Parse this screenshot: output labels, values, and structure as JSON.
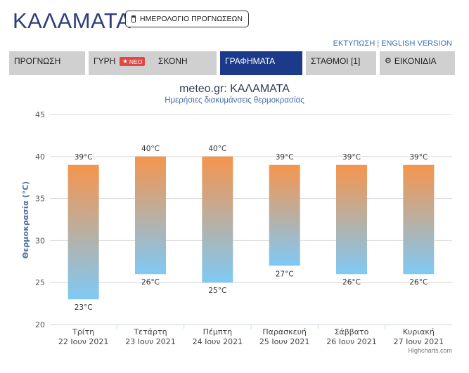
{
  "header": {
    "city": "ΚΑΛΑΜΑΤΑ",
    "calendar_button": "ΗΜΕΡΟΛΟΓΙΟ ΠΡΟΓΝΩΣΕΩΝ",
    "print_link": "ΕΚΤΥΠΩΣΗ",
    "separator": "|",
    "english_link": "ENGLISH VERSION"
  },
  "tabs": [
    {
      "label": "ΠΡΟΓΝΩΣΗ",
      "active": false
    },
    {
      "label": "ΓΥΡΗ",
      "badge": "ΝΕΟ",
      "active": false
    },
    {
      "label": "ΣΚΟΝΗ",
      "active": false
    },
    {
      "label": "ΓΡΑΦΗΜΑΤΑ",
      "active": true
    },
    {
      "label": "ΣΤΑΘΜΟΙ [1]",
      "active": false
    },
    {
      "label": "ΕΙΚΟΝΙΔΙΑ",
      "active": false
    }
  ],
  "icons": {
    "calendar": "calendar-icon",
    "star": "star-icon",
    "gear": "gear-icon"
  },
  "colors": {
    "title": "#2f3e7a",
    "active_tab": "#1b3a8a",
    "tab": "#d0d0d0",
    "badge": "#e04848",
    "bar_top": "#f5954d",
    "bar_bottom": "#7fc9f5"
  },
  "chart_data": {
    "type": "bar",
    "subtype": "columnrange",
    "title": "meteo.gr: ΚΑΛΑΜΑΤΑ",
    "subtitle": "Ημερήσιες διακυμάνσεις θερμοκρασίας",
    "ylabel": "Θερμοκρασία (°C)",
    "ylim": [
      20,
      45
    ],
    "yticks": [
      20,
      25,
      30,
      35,
      40,
      45
    ],
    "grid": true,
    "categories": [
      {
        "day": "Τρίτη",
        "date": "22 Ιουν 2021"
      },
      {
        "day": "Τετάρτη",
        "date": "23 Ιουν 2021"
      },
      {
        "day": "Πέμπτη",
        "date": "24 Ιουν 2021"
      },
      {
        "day": "Παρασκευή",
        "date": "25 Ιουν 2021"
      },
      {
        "day": "Σάββατο",
        "date": "26 Ιουν 2021"
      },
      {
        "day": "Κυριακή",
        "date": "27 Ιουν 2021"
      }
    ],
    "series": [
      {
        "low": 23,
        "high": 39
      },
      {
        "low": 26,
        "high": 40
      },
      {
        "low": 25,
        "high": 40
      },
      {
        "low": 27,
        "high": 39
      },
      {
        "low": 26,
        "high": 39
      },
      {
        "low": 26,
        "high": 39
      }
    ],
    "unit": "°C",
    "credits": "Highcharts.com"
  }
}
